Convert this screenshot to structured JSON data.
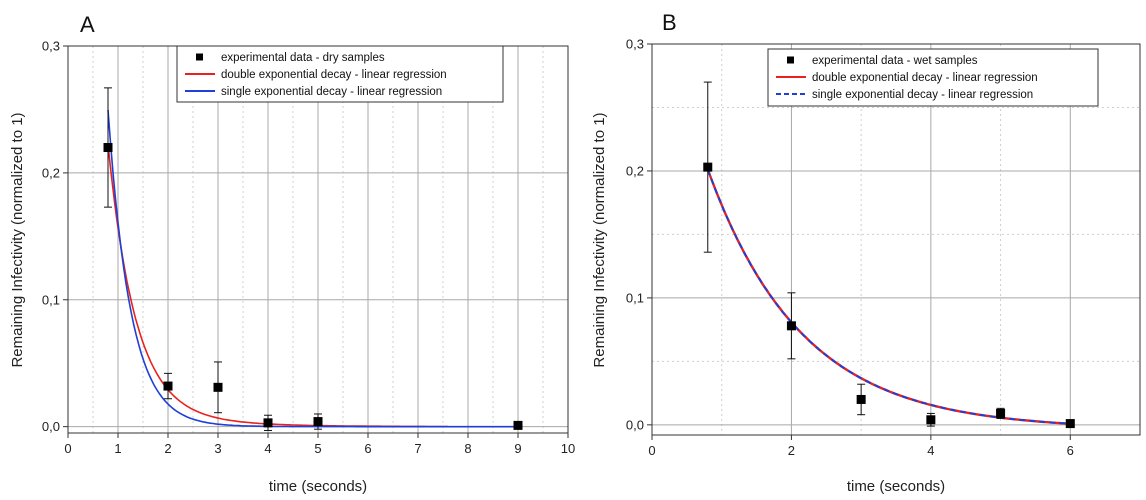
{
  "chart_data": [
    {
      "panel_label": "A",
      "type": "scatter",
      "xlabel": "time (seconds)",
      "ylabel": "Remaining Infectivity (normalized to 1)",
      "xlim": [
        0,
        10
      ],
      "ylim": [
        -0.005,
        0.3
      ],
      "xticks": [
        "0",
        "1",
        "2",
        "3",
        "4",
        "5",
        "6",
        "7",
        "8",
        "9",
        "10"
      ],
      "yticks": [
        "0,0",
        "0,1",
        "0,2",
        "0,3"
      ],
      "grid": true,
      "legend_position": "top-right",
      "legend": [
        {
          "label": "experimental data - dry samples",
          "kind": "marker",
          "color": "#000000"
        },
        {
          "label": "double exponential decay - linear regression",
          "kind": "line",
          "color": "#e8231f"
        },
        {
          "label": "single exponential decay - linear regression",
          "kind": "line",
          "color": "#1f3fd6"
        }
      ],
      "series": [
        {
          "name": "experimental data - dry samples",
          "x": [
            0.8,
            2,
            3,
            4,
            5,
            9
          ],
          "y": [
            0.22,
            0.032,
            0.031,
            0.003,
            0.004,
            0.001
          ],
          "err": [
            0.047,
            0.01,
            0.02,
            0.006,
            0.006,
            0.002
          ]
        }
      ],
      "fits": [
        {
          "name": "double exponential decay - linear regression",
          "color": "#e8231f",
          "x_start": 0.8,
          "x_end": 7.6
        },
        {
          "name": "single exponential decay - linear regression",
          "color": "#1f3fd6",
          "x_start": 0.8,
          "x_end": 9
        }
      ]
    },
    {
      "panel_label": "B",
      "type": "scatter",
      "xlabel": "time (seconds)",
      "ylabel": "Remaining Infectivity (normalized to 1)",
      "xlim": [
        0,
        7
      ],
      "ylim": [
        -0.008,
        0.3
      ],
      "xticks": [
        "0",
        "2",
        "4",
        "6"
      ],
      "yticks": [
        "0,0",
        "0,1",
        "0,2",
        "0,3"
      ],
      "grid": true,
      "legend_position": "top-right",
      "legend": [
        {
          "label": "experimental data - wet samples",
          "kind": "marker",
          "color": "#000000"
        },
        {
          "label": "double exponential decay - linear regression",
          "kind": "line",
          "color": "#e8231f"
        },
        {
          "label": "single exponential decay - linear regression",
          "kind": "dashed",
          "color": "#1f3fd6"
        }
      ],
      "series": [
        {
          "name": "experimental data - wet samples",
          "x": [
            0.8,
            2,
            3,
            4,
            5,
            6
          ],
          "y": [
            0.203,
            0.078,
            0.02,
            0.004,
            0.009,
            0.001
          ],
          "err": [
            0.067,
            0.026,
            0.012,
            0.005,
            0.004,
            0.002
          ]
        }
      ],
      "fits": [
        {
          "name": "double exponential decay - linear regression",
          "color": "#e8231f",
          "x_start": 0.8,
          "x_end": 6
        },
        {
          "name": "single exponential decay - linear regression",
          "color": "#1f3fd6",
          "x_start": 0.8,
          "x_end": 6
        }
      ]
    }
  ]
}
